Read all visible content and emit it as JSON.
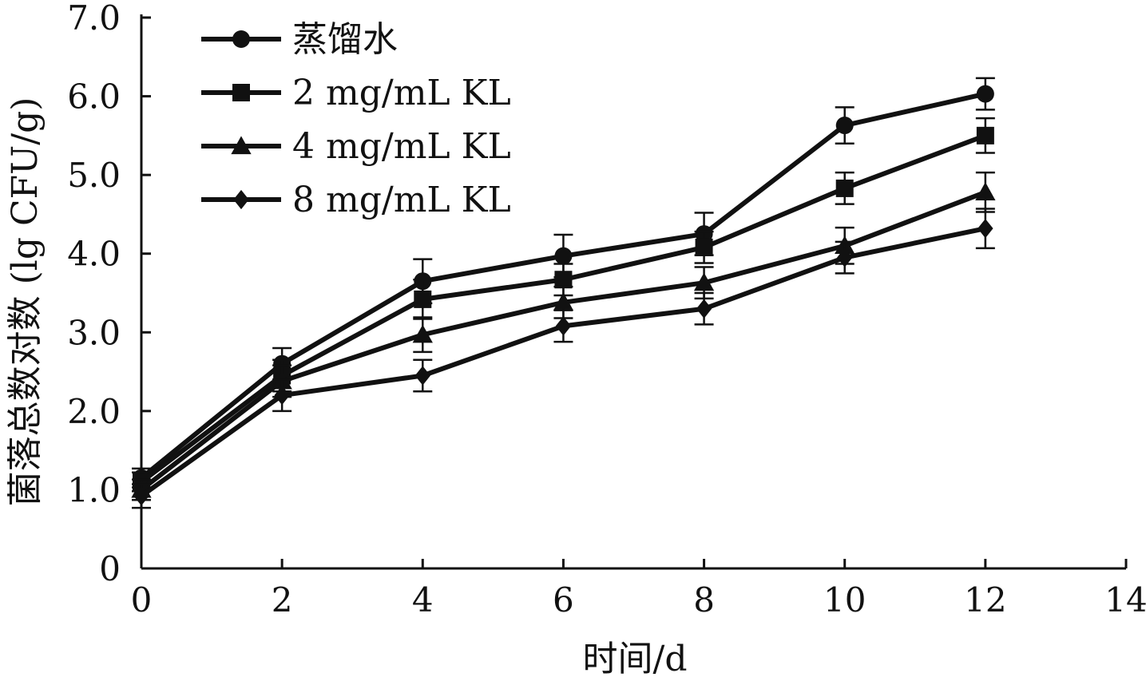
{
  "chart_data": {
    "type": "line",
    "xlabel": "时间/d",
    "ylabel": "菌落总数对数 (lg CFU/g)",
    "xlim": [
      0,
      14
    ],
    "ylim": [
      0,
      7
    ],
    "x_ticks": [
      "0",
      "2",
      "4",
      "6",
      "8",
      "10",
      "12",
      "14"
    ],
    "y_ticks": [
      "0",
      "1.0",
      "2.0",
      "3.0",
      "4.0",
      "5.0",
      "6.0",
      "7.0"
    ],
    "grid": false,
    "legend_position": "top-left",
    "x": [
      0,
      2,
      4,
      6,
      8,
      10,
      12
    ],
    "series": [
      {
        "name": "蒸馏水",
        "marker": "circle",
        "values": [
          1.15,
          2.6,
          3.65,
          3.97,
          4.25,
          5.63,
          6.03
        ],
        "errors": [
          0.12,
          0.2,
          0.28,
          0.27,
          0.27,
          0.23,
          0.2
        ]
      },
      {
        "name": "2 mg/mL KL",
        "marker": "square",
        "values": [
          1.1,
          2.45,
          3.42,
          3.67,
          4.08,
          4.83,
          5.5
        ],
        "errors": [
          0.12,
          0.2,
          0.25,
          0.2,
          0.2,
          0.2,
          0.22
        ]
      },
      {
        "name": "4 mg/mL KL",
        "marker": "triangle",
        "values": [
          1.0,
          2.38,
          2.97,
          3.38,
          3.63,
          4.1,
          4.78
        ],
        "errors": [
          0.13,
          0.2,
          0.22,
          0.2,
          0.2,
          0.23,
          0.25
        ]
      },
      {
        "name": "8 mg/mL KL",
        "marker": "diamond",
        "values": [
          0.92,
          2.2,
          2.45,
          3.08,
          3.3,
          3.95,
          4.32
        ],
        "errors": [
          0.15,
          0.2,
          0.2,
          0.2,
          0.2,
          0.2,
          0.25
        ]
      }
    ],
    "color": "#111111"
  }
}
